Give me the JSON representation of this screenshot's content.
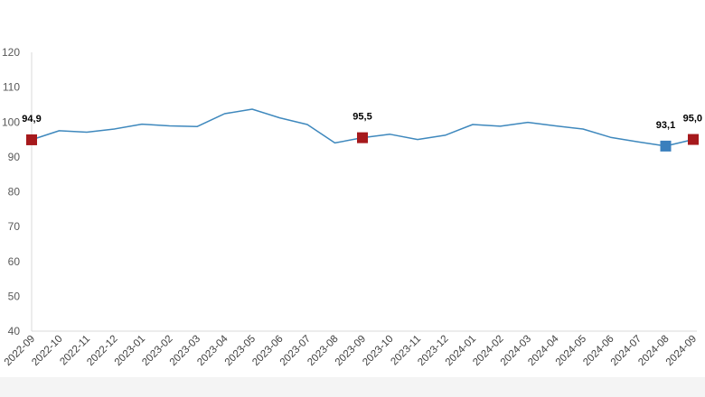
{
  "chart_data": {
    "type": "line",
    "title": "",
    "xlabel": "",
    "ylabel": "",
    "ylim": [
      40,
      120
    ],
    "yticks": [
      40,
      50,
      60,
      70,
      80,
      90,
      100,
      110,
      120
    ],
    "grid": false,
    "categories": [
      "2022-09",
      "2022-10",
      "2022-11",
      "2022-12",
      "2023-01",
      "2023-02",
      "2023-03",
      "2023-04",
      "2023-05",
      "2023-06",
      "2023-07",
      "2023-08",
      "2023-09",
      "2023-10",
      "2023-11",
      "2023-12",
      "2024-01",
      "2024-02",
      "2024-03",
      "2024-04",
      "2024-05",
      "2024-06",
      "2024-07",
      "2024-08",
      "2024-09"
    ],
    "series": [
      {
        "values": [
          94.9,
          97.5,
          97.1,
          98.0,
          99.4,
          98.9,
          98.7,
          102.4,
          103.7,
          101.2,
          99.3,
          94.0,
          95.5,
          96.5,
          95.0,
          96.2,
          99.3,
          98.8,
          99.9,
          98.9,
          98.0,
          95.6,
          94.3,
          93.1,
          95.0
        ]
      }
    ],
    "line_color": "#3e88bd",
    "highlighted_points": [
      {
        "category": "2022-09",
        "value": 94.9,
        "label": "94,9",
        "color": "#a6191c"
      },
      {
        "category": "2023-09",
        "value": 95.5,
        "label": "95,5",
        "color": "#a6191c"
      },
      {
        "category": "2024-08",
        "value": 93.1,
        "label": "93,1",
        "color": "#3a7fbd"
      },
      {
        "category": "2024-09",
        "value": 95.0,
        "label": "95,0",
        "color": "#a6191c"
      }
    ]
  }
}
